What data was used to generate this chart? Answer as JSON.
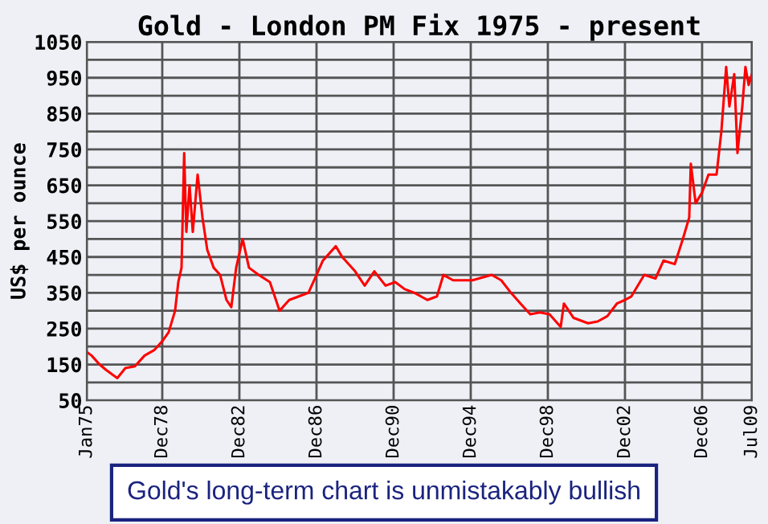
{
  "chart_data": {
    "type": "line",
    "title": "Gold - London PM Fix 1975 - present",
    "ylabel": "US$ per ounce",
    "annotations": [
      "Gold's long-term chart is unmistakably bullish"
    ],
    "xlim": [
      "1975-01",
      "2009-07"
    ],
    "ylim": [
      50,
      1050
    ],
    "xticks": [
      {
        "value": "1975-01",
        "label": "Jan75"
      },
      {
        "value": "1978-12",
        "label": "Dec78"
      },
      {
        "value": "1982-12",
        "label": "Dec82"
      },
      {
        "value": "1986-12",
        "label": "Dec86"
      },
      {
        "value": "1990-12",
        "label": "Dec90"
      },
      {
        "value": "1994-12",
        "label": "Dec94"
      },
      {
        "value": "1998-12",
        "label": "Dec98"
      },
      {
        "value": "2002-12",
        "label": "Dec02"
      },
      {
        "value": "2006-12",
        "label": "Dec06"
      },
      {
        "value": "2009-07",
        "label": "Jul09"
      }
    ],
    "yticks": [
      50,
      {
        "value": 100,
        "label": null
      },
      150,
      {
        "value": 200,
        "label": null
      },
      250,
      {
        "value": 300,
        "label": null
      },
      350,
      {
        "value": 400,
        "label": null
      },
      450,
      {
        "value": 500,
        "label": null
      },
      550,
      {
        "value": 600,
        "label": null
      },
      650,
      {
        "value": 700,
        "label": null
      },
      750,
      {
        "value": 800,
        "label": null
      },
      850,
      {
        "value": 900,
        "label": null
      },
      950,
      {
        "value": 1000,
        "label": null
      },
      1050
    ],
    "grid": true,
    "legend": false,
    "marker": "none",
    "line_style": "solid",
    "series": [
      {
        "color": "#ff0000",
        "x": [
          "1975-01",
          "1975-04",
          "1975-09",
          "1976-01",
          "1976-08",
          "1977-01",
          "1977-07",
          "1978-01",
          "1978-07",
          "1978-12",
          "1979-04",
          "1979-08",
          "1979-10",
          "1979-12",
          "1980-01-20",
          "1980-03",
          "1980-05",
          "1980-07",
          "1980-10",
          "1981-01",
          "1981-04",
          "1981-08",
          "1981-12",
          "1982-04",
          "1982-07",
          "1982-10",
          "1983-02",
          "1983-06",
          "1983-12",
          "1984-07",
          "1985-01",
          "1985-07",
          "1986-01",
          "1986-07",
          "1986-12",
          "1987-04",
          "1987-12",
          "1988-04",
          "1988-12",
          "1989-06",
          "1989-12",
          "1990-07",
          "1991-01",
          "1991-07",
          "1992-01",
          "1992-09",
          "1993-03",
          "1993-07",
          "1994-01",
          "1995-01",
          "1996-01",
          "1996-07",
          "1997-01",
          "1997-07",
          "1998-01",
          "1998-07",
          "1999-01",
          "1999-08",
          "1999-10",
          "2000-04",
          "2001-01",
          "2001-07",
          "2002-01",
          "2002-07",
          "2002-12",
          "2003-04",
          "2003-12",
          "2004-07",
          "2004-12",
          "2005-07",
          "2005-12",
          "2006-04",
          "2006-05",
          "2006-08",
          "2006-12",
          "2007-04",
          "2007-09",
          "2007-12",
          "2008-03",
          "2008-05",
          "2008-08",
          "2008-10",
          "2009-01",
          "2009-03",
          "2009-05",
          "2009-07"
        ],
        "values": [
          185,
          175,
          150,
          135,
          112,
          140,
          145,
          175,
          190,
          215,
          240,
          300,
          380,
          420,
          740,
          520,
          650,
          520,
          680,
          560,
          470,
          420,
          400,
          330,
          310,
          420,
          500,
          420,
          400,
          380,
          300,
          330,
          340,
          350,
          400,
          440,
          480,
          450,
          410,
          370,
          410,
          370,
          380,
          360,
          350,
          330,
          340,
          400,
          385,
          385,
          400,
          385,
          350,
          320,
          290,
          295,
          290,
          255,
          320,
          280,
          265,
          270,
          285,
          320,
          330,
          340,
          400,
          390,
          440,
          430,
          500,
          560,
          710,
          600,
          630,
          680,
          680,
          800,
          980,
          870,
          960,
          740,
          870,
          980,
          930,
          960
        ]
      }
    ]
  }
}
